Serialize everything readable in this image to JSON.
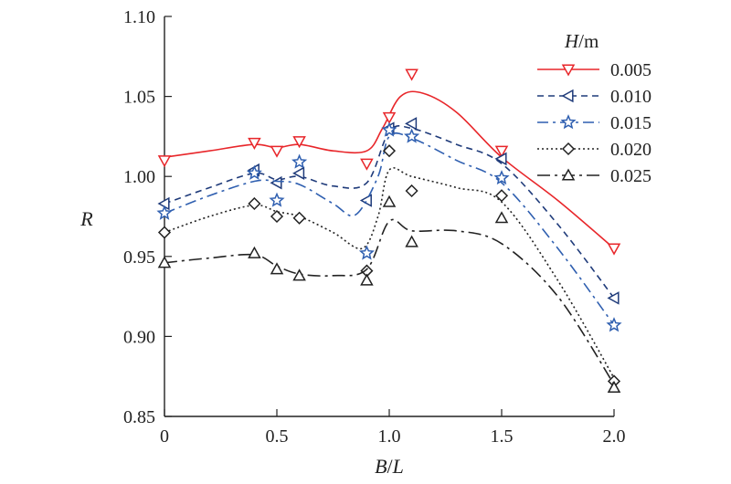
{
  "chart_data": {
    "type": "line",
    "xlabel": {
      "italic_part": "B",
      "sep": "/",
      "italic_part2": "L"
    },
    "ylabel": "R",
    "xlim": [
      0,
      2.0
    ],
    "ylim": [
      0.85,
      1.1
    ],
    "xticks": [
      0,
      0.5,
      1.0,
      1.5,
      2.0
    ],
    "xtick_labels": [
      "0",
      "0.5",
      "1.0",
      "1.5",
      "2.0"
    ],
    "yticks": [
      0.85,
      0.9,
      0.95,
      1.0,
      1.05,
      1.1
    ],
    "ytick_labels": [
      "0.85",
      "0.90",
      "0.95",
      "1.00",
      "1.05",
      "1.10"
    ],
    "grid": false,
    "legend": {
      "title_italic": "H",
      "title_rest": "/m",
      "placement": "top-right"
    },
    "series": [
      {
        "name": "0.005",
        "color": "#e8262a",
        "dash": "solid",
        "marker": "triangle-down",
        "points": [
          [
            0,
            1.01
          ],
          [
            0.4,
            1.021
          ],
          [
            0.5,
            1.016
          ],
          [
            0.6,
            1.022
          ],
          [
            0.9,
            1.008
          ],
          [
            1.0,
            1.037
          ],
          [
            1.1,
            1.064
          ],
          [
            1.5,
            1.016
          ],
          [
            2.0,
            0.955
          ]
        ],
        "curve": [
          [
            0,
            1.012
          ],
          [
            0.2,
            1.016
          ],
          [
            0.4,
            1.02
          ],
          [
            0.5,
            1.018
          ],
          [
            0.6,
            1.02
          ],
          [
            0.75,
            1.016
          ],
          [
            0.9,
            1.016
          ],
          [
            0.97,
            1.03
          ],
          [
            1.05,
            1.05
          ],
          [
            1.15,
            1.052
          ],
          [
            1.3,
            1.04
          ],
          [
            1.5,
            1.012
          ],
          [
            1.75,
            0.985
          ],
          [
            2.0,
            0.955
          ]
        ]
      },
      {
        "name": "0.010",
        "color": "#1f3b7a",
        "dash": "dash",
        "marker": "triangle-left",
        "points": [
          [
            0,
            0.983
          ],
          [
            0.4,
            1.004
          ],
          [
            0.5,
            0.996
          ],
          [
            0.6,
            1.002
          ],
          [
            0.9,
            0.985
          ],
          [
            1.0,
            1.03
          ],
          [
            1.1,
            1.033
          ],
          [
            1.5,
            1.011
          ],
          [
            2.0,
            0.924
          ]
        ],
        "curve": [
          [
            0,
            0.983
          ],
          [
            0.2,
            0.993
          ],
          [
            0.4,
            1.002
          ],
          [
            0.5,
            0.998
          ],
          [
            0.6,
            1.0
          ],
          [
            0.75,
            0.994
          ],
          [
            0.9,
            0.996
          ],
          [
            1.0,
            1.028
          ],
          [
            1.1,
            1.03
          ],
          [
            1.3,
            1.02
          ],
          [
            1.5,
            1.008
          ],
          [
            1.75,
            0.97
          ],
          [
            2.0,
            0.924
          ]
        ]
      },
      {
        "name": "0.015",
        "color": "#2f5fb0",
        "dash": "dashdot",
        "marker": "star",
        "points": [
          [
            0,
            0.977
          ],
          [
            0.4,
            1.002
          ],
          [
            0.5,
            0.985
          ],
          [
            0.6,
            1.009
          ],
          [
            0.9,
            0.952
          ],
          [
            1.0,
            1.029
          ],
          [
            1.1,
            1.025
          ],
          [
            1.5,
            0.999
          ],
          [
            2.0,
            0.907
          ]
        ],
        "curve": [
          [
            0,
            0.977
          ],
          [
            0.2,
            0.988
          ],
          [
            0.4,
            0.997
          ],
          [
            0.5,
            0.997
          ],
          [
            0.6,
            0.995
          ],
          [
            0.75,
            0.983
          ],
          [
            0.85,
            0.976
          ],
          [
            0.95,
            1.0
          ],
          [
            1.0,
            1.025
          ],
          [
            1.1,
            1.024
          ],
          [
            1.3,
            1.01
          ],
          [
            1.5,
            0.996
          ],
          [
            1.75,
            0.955
          ],
          [
            2.0,
            0.907
          ]
        ]
      },
      {
        "name": "0.020",
        "color": "#222222",
        "dash": "dot",
        "marker": "diamond",
        "points": [
          [
            0,
            0.965
          ],
          [
            0.4,
            0.983
          ],
          [
            0.5,
            0.975
          ],
          [
            0.6,
            0.974
          ],
          [
            0.9,
            0.941
          ],
          [
            1.0,
            1.016
          ],
          [
            1.1,
            0.991
          ],
          [
            1.5,
            0.988
          ],
          [
            2.0,
            0.872
          ]
        ],
        "curve": [
          [
            0,
            0.965
          ],
          [
            0.2,
            0.975
          ],
          [
            0.4,
            0.982
          ],
          [
            0.5,
            0.978
          ],
          [
            0.6,
            0.975
          ],
          [
            0.75,
            0.965
          ],
          [
            0.88,
            0.955
          ],
          [
            0.95,
            0.975
          ],
          [
            1.0,
            1.004
          ],
          [
            1.1,
            1.0
          ],
          [
            1.3,
            0.993
          ],
          [
            1.5,
            0.984
          ],
          [
            1.75,
            0.935
          ],
          [
            2.0,
            0.874
          ]
        ]
      },
      {
        "name": "0.025",
        "color": "#222222",
        "dash": "dashdotlong",
        "marker": "triangle-up",
        "points": [
          [
            0,
            0.946
          ],
          [
            0.4,
            0.952
          ],
          [
            0.5,
            0.942
          ],
          [
            0.6,
            0.938
          ],
          [
            0.9,
            0.935
          ],
          [
            1.0,
            0.984
          ],
          [
            1.1,
            0.959
          ],
          [
            1.5,
            0.974
          ],
          [
            2.0,
            0.868
          ]
        ],
        "curve": [
          [
            0,
            0.946
          ],
          [
            0.2,
            0.949
          ],
          [
            0.4,
            0.951
          ],
          [
            0.5,
            0.944
          ],
          [
            0.6,
            0.939
          ],
          [
            0.75,
            0.938
          ],
          [
            0.9,
            0.942
          ],
          [
            1.0,
            0.972
          ],
          [
            1.1,
            0.966
          ],
          [
            1.3,
            0.966
          ],
          [
            1.5,
            0.958
          ],
          [
            1.75,
            0.925
          ],
          [
            2.0,
            0.87
          ]
        ]
      }
    ]
  }
}
